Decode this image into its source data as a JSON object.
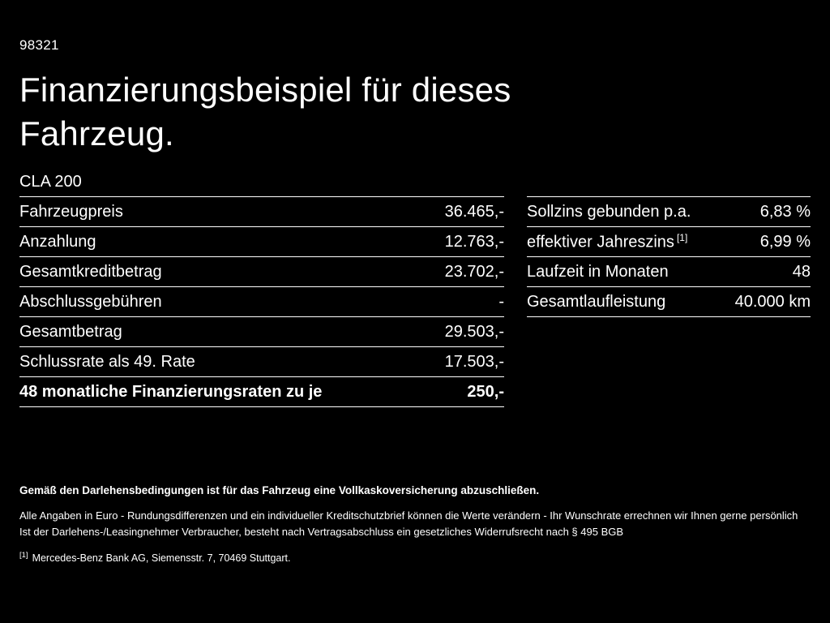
{
  "colors": {
    "background": "#000000",
    "text": "#ffffff",
    "divider": "#ffffff"
  },
  "header": {
    "doc_id": "98321",
    "title_line1": "Finanzierungsbeispiel für dieses",
    "title_line2": "Fahrzeug.",
    "model": "CLA 200"
  },
  "left_table": {
    "rows": [
      {
        "label": "Fahrzeugpreis",
        "value": "36.465,-"
      },
      {
        "label": "Anzahlung",
        "value": "12.763,-"
      },
      {
        "label": "Gesamtkreditbetrag",
        "value": "23.702,-"
      },
      {
        "label": "Abschlussgebühren",
        "value": "-"
      },
      {
        "label": "Gesamtbetrag",
        "value": "29.503,-"
      },
      {
        "label": "Schlussrate als 49. Rate",
        "value": "17.503,-"
      },
      {
        "label": "48 monatliche Finanzierungsraten zu je",
        "value": "250,-"
      }
    ]
  },
  "right_table": {
    "rows": [
      {
        "label": "Sollzins gebunden p.a.",
        "footnote_ref": "",
        "value": "6,83 %"
      },
      {
        "label": "effektiver Jahreszins",
        "footnote_ref": "[1]",
        "value": "6,99 %"
      },
      {
        "label": "Laufzeit in Monaten",
        "footnote_ref": "",
        "value": "48"
      },
      {
        "label": "Gesamtlaufleistung",
        "footnote_ref": "",
        "value": "40.000 km"
      }
    ]
  },
  "footer": {
    "bold_line": "Gemäß den Darlehensbedingungen ist für das Fahrzeug eine Vollkaskoversicherung abzuschließen.",
    "line2": "Alle Angaben in Euro - Rundungsdifferenzen und ein individueller Kreditschutzbrief können die Werte verändern - Ihr Wunschrate errechnen wir Ihnen gerne persönlich",
    "line3": "Ist der Darlehens-/Leasingnehmer Verbraucher, besteht nach Vertragsabschluss ein gesetzliches Widerrufsrecht nach § 495 BGB",
    "footnote_marker": "[1]",
    "footnote_text": "Mercedes-Benz Bank AG, Siemensstr. 7, 70469 Stuttgart."
  }
}
